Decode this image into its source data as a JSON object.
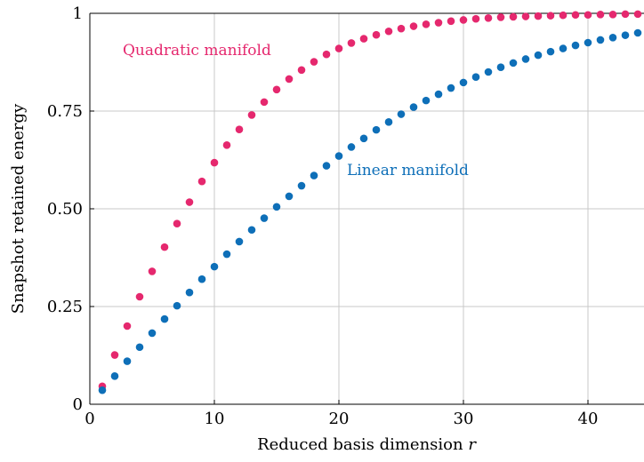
{
  "chart_data": {
    "type": "scatter",
    "xlabel": "Reduced basis dimension",
    "xlabel_var": "r",
    "ylabel": "Snapshot retained energy",
    "xlim": [
      0,
      44.5
    ],
    "ylim": [
      0,
      1
    ],
    "x_ticks": [
      0,
      10,
      20,
      30,
      40
    ],
    "x_tick_labels": [
      "0",
      "10",
      "20",
      "30",
      "40"
    ],
    "y_ticks": [
      0,
      0.25,
      0.5,
      0.75,
      1
    ],
    "y_tick_labels": [
      "0",
      "0.25",
      "0.50",
      "0.75",
      "1"
    ],
    "grid": true,
    "x": [
      1,
      2,
      3,
      4,
      5,
      6,
      7,
      8,
      9,
      10,
      11,
      12,
      13,
      14,
      15,
      16,
      17,
      18,
      19,
      20,
      21,
      22,
      23,
      24,
      25,
      26,
      27,
      28,
      29,
      30,
      31,
      32,
      33,
      34,
      35,
      36,
      37,
      38,
      39,
      40,
      41,
      42,
      43,
      44
    ],
    "series": [
      {
        "name": "Quadratic manifold",
        "color": "#e5286e",
        "values": [
          0.046,
          0.126,
          0.2,
          0.275,
          0.34,
          0.402,
          0.462,
          0.517,
          0.57,
          0.618,
          0.663,
          0.703,
          0.74,
          0.773,
          0.805,
          0.832,
          0.855,
          0.876,
          0.895,
          0.91,
          0.924,
          0.935,
          0.945,
          0.954,
          0.961,
          0.967,
          0.972,
          0.976,
          0.98,
          0.983,
          0.986,
          0.988,
          0.99,
          0.991,
          0.992,
          0.993,
          0.994,
          0.995,
          0.996,
          0.996,
          0.997,
          0.997,
          0.998,
          0.998
        ]
      },
      {
        "name": "Linear manifold",
        "color": "#0e6fb8",
        "values": [
          0.036,
          0.072,
          0.11,
          0.146,
          0.182,
          0.218,
          0.252,
          0.286,
          0.32,
          0.352,
          0.384,
          0.416,
          0.446,
          0.476,
          0.505,
          0.532,
          0.559,
          0.585,
          0.61,
          0.635,
          0.658,
          0.68,
          0.702,
          0.722,
          0.742,
          0.76,
          0.777,
          0.793,
          0.809,
          0.823,
          0.837,
          0.85,
          0.862,
          0.873,
          0.883,
          0.893,
          0.902,
          0.91,
          0.918,
          0.925,
          0.932,
          0.938,
          0.944,
          0.95
        ]
      }
    ]
  }
}
